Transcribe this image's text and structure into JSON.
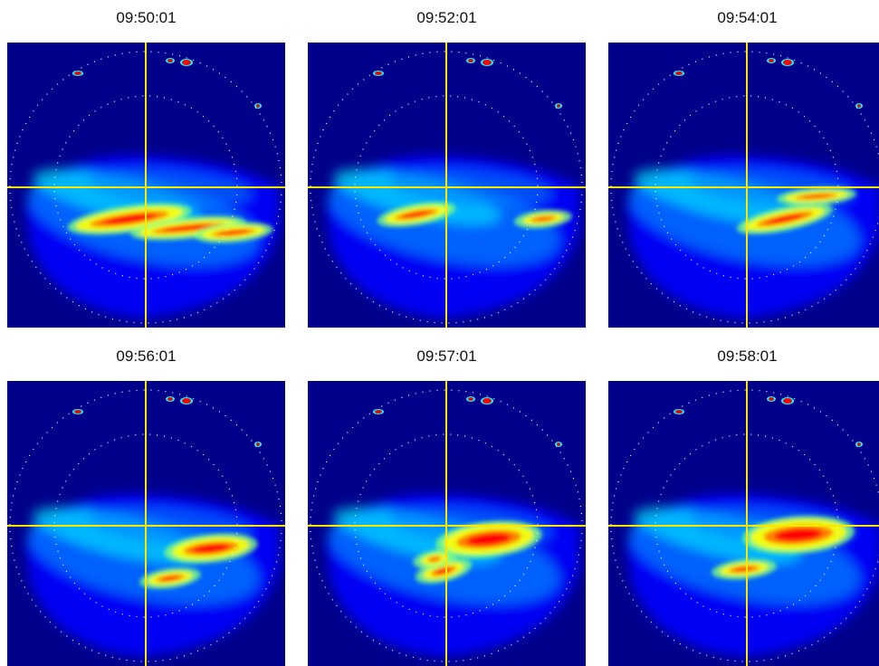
{
  "panels": [
    {
      "timestamp": "09:50:01"
    },
    {
      "timestamp": "09:52:01"
    },
    {
      "timestamp": "09:54:01"
    },
    {
      "timestamp": "09:56:01"
    },
    {
      "timestamp": "09:57:01"
    },
    {
      "timestamp": "09:58:01"
    }
  ],
  "colors": {
    "background": "#00008b",
    "crosshair": "#ffe600",
    "range_rings": "#ffffff",
    "colormap": [
      "#00008b",
      "#0000ff",
      "#0080ff",
      "#00ffff",
      "#80ff80",
      "#ffff00",
      "#ff8000",
      "#ff0000",
      "#800000"
    ]
  }
}
